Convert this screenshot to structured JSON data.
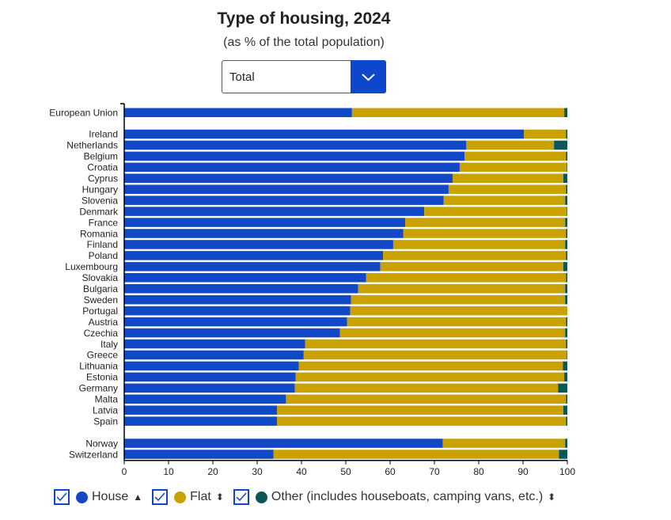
{
  "header": {
    "title": "Type of housing, 2024",
    "subtitle": "(as % of the total population)"
  },
  "dropdown": {
    "selected": "Total",
    "icon": "chevron-down-icon"
  },
  "colors": {
    "house": "#1148c8",
    "flat": "#c9a100",
    "other": "#0b5758",
    "accent": "#0e47cb"
  },
  "legend": [
    {
      "label": "House",
      "checked": true,
      "sort": "▲"
    },
    {
      "label": "Flat",
      "checked": true,
      "sort": "⬍"
    },
    {
      "label": "Other (includes houseboats, camping vans, etc.)",
      "checked": true,
      "sort": "⬍"
    }
  ],
  "chart_data": {
    "type": "bar",
    "orientation": "horizontal",
    "stacked": true,
    "title": "Type of housing, 2024",
    "subtitle": "(as % of the total population)",
    "xlim": [
      0,
      100
    ],
    "xticks": [
      0,
      10,
      20,
      30,
      40,
      50,
      60,
      70,
      80,
      90,
      100
    ],
    "groups": [
      [
        "European Union"
      ],
      [
        "Ireland",
        "Netherlands",
        "Belgium",
        "Croatia",
        "Cyprus",
        "Hungary",
        "Slovenia",
        "Denmark",
        "France",
        "Romania",
        "Finland",
        "Poland",
        "Luxembourg",
        "Slovakia",
        "Bulgaria",
        "Sweden",
        "Portugal",
        "Austria",
        "Czechia",
        "Italy",
        "Greece",
        "Lithuania",
        "Estonia",
        "Germany",
        "Malta",
        "Latvia",
        "Spain"
      ],
      [
        "Norway",
        "Switzerland"
      ]
    ],
    "categories": [
      "European Union",
      "Ireland",
      "Netherlands",
      "Belgium",
      "Croatia",
      "Cyprus",
      "Hungary",
      "Slovenia",
      "Denmark",
      "France",
      "Romania",
      "Finland",
      "Poland",
      "Luxembourg",
      "Slovakia",
      "Bulgaria",
      "Sweden",
      "Portugal",
      "Austria",
      "Czechia",
      "Italy",
      "Greece",
      "Lithuania",
      "Estonia",
      "Germany",
      "Malta",
      "Latvia",
      "Spain",
      "Norway",
      "Switzerland"
    ],
    "series": [
      {
        "name": "House",
        "values": [
          51.4,
          90.2,
          77.2,
          76.8,
          75.7,
          74.1,
          73.2,
          72.1,
          67.7,
          63.4,
          63.0,
          60.7,
          58.4,
          57.8,
          54.6,
          52.8,
          51.2,
          51.0,
          50.3,
          48.7,
          40.8,
          40.5,
          39.4,
          38.7,
          38.5,
          36.5,
          34.5,
          34.5,
          71.9,
          33.7
        ]
      },
      {
        "name": "Flat",
        "values": [
          47.9,
          9.5,
          19.8,
          22.9,
          24.2,
          25.0,
          26.5,
          27.4,
          32.2,
          36.1,
          36.7,
          38.8,
          41.3,
          41.3,
          45.1,
          46.7,
          48.3,
          49.0,
          49.4,
          50.8,
          58.9,
          59.4,
          59.6,
          60.6,
          59.4,
          63.2,
          64.6,
          65.2,
          27.6,
          64.4
        ]
      },
      {
        "name": "Other (includes houseboats, camping vans, etc.)",
        "values": [
          0.7,
          0.3,
          3.0,
          0.3,
          0.1,
          0.9,
          0.3,
          0.5,
          0.1,
          0.5,
          0.3,
          0.5,
          0.3,
          0.9,
          0.3,
          0.5,
          0.5,
          0.0,
          0.3,
          0.5,
          0.3,
          0.1,
          1.0,
          0.7,
          2.1,
          0.3,
          0.9,
          0.3,
          0.5,
          1.9
        ]
      }
    ]
  }
}
